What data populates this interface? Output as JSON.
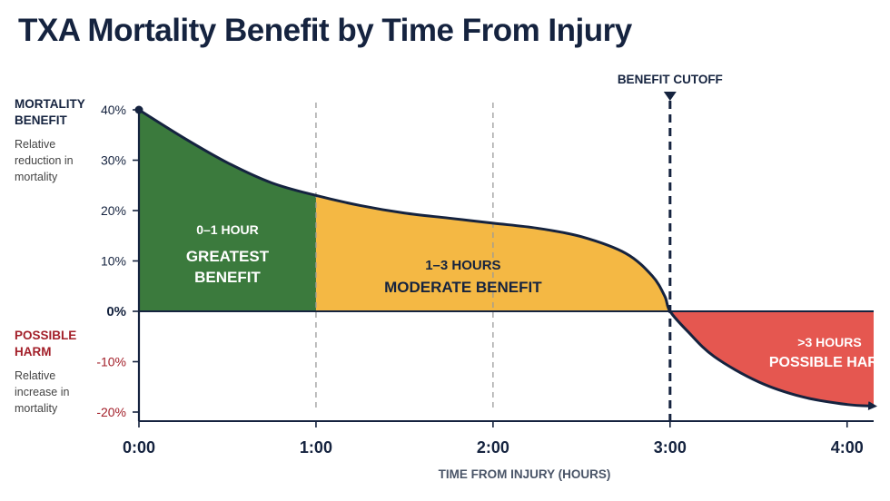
{
  "title": "TXA Mortality Benefit by Time From Injury",
  "left_labels": {
    "benefit_heading": "MORTALITY BENEFIT",
    "benefit_sub": "Relative reduction in mortality",
    "harm_heading": "POSSIBLE HARM",
    "harm_sub": "Relative increase in mortality"
  },
  "chart_data": {
    "type": "area",
    "title": "TXA Mortality Benefit by Time From Injury",
    "xlabel": "TIME FROM INJURY (HOURS)",
    "ylabel": "MORTALITY BENEFIT",
    "xlim": [
      0,
      4.15
    ],
    "ylim": [
      -20,
      40
    ],
    "x_ticks": [
      {
        "value": 0,
        "label": "0:00"
      },
      {
        "value": 1,
        "label": "1:00"
      },
      {
        "value": 2,
        "label": "2:00"
      },
      {
        "value": 3,
        "label": "3:00"
      },
      {
        "value": 4,
        "label": "4:00"
      }
    ],
    "y_ticks": [
      {
        "value": 40,
        "label": "40%"
      },
      {
        "value": 30,
        "label": "30%"
      },
      {
        "value": 20,
        "label": "20%"
      },
      {
        "value": 10,
        "label": "10%"
      },
      {
        "value": 0,
        "label": "0%"
      },
      {
        "value": -10,
        "label": "-10%"
      },
      {
        "value": -20,
        "label": "-20%"
      }
    ],
    "series": [
      {
        "name": "",
        "x": [
          0,
          0.25,
          0.5,
          0.75,
          1.0,
          1.25,
          1.5,
          1.75,
          2.0,
          2.25,
          2.5,
          2.75,
          2.9,
          2.97,
          3.0,
          3.1,
          3.25,
          3.5,
          3.75,
          4.0,
          4.15
        ],
        "values": [
          40,
          34.5,
          29.5,
          25.5,
          23,
          21,
          19.5,
          18.5,
          17.5,
          16.5,
          14.8,
          11.5,
          7,
          3,
          0,
          -4,
          -9,
          -14,
          -17,
          -18.5,
          -18.8
        ]
      }
    ],
    "zones": [
      {
        "x_from": 0,
        "x_to": 1,
        "color": "#3b7a3d",
        "range_label": "0–1 HOUR",
        "label_lines": [
          "GREATEST",
          "BENEFIT"
        ],
        "text_color": "#ffffff",
        "label_x": 0.5
      },
      {
        "x_from": 1,
        "x_to": 3,
        "color": "#f4b844",
        "range_label": "1–3 HOURS",
        "label_lines": [
          "MODERATE BENEFIT"
        ],
        "text_color": "#15233f",
        "label_x": 2.0
      },
      {
        "x_from": 3,
        "x_to": 4.15,
        "color": "#e55750",
        "range_label": ">3 HOURS",
        "label_lines": [
          "POSSIBLE HARM"
        ],
        "text_color": "#ffffff",
        "label_x": 3.85
      }
    ],
    "dashed_gridlines_x": [
      1,
      2
    ],
    "cutoff": {
      "x": 3,
      "label": "BENEFIT CUTOFF"
    },
    "grid": false,
    "legend": "none"
  }
}
